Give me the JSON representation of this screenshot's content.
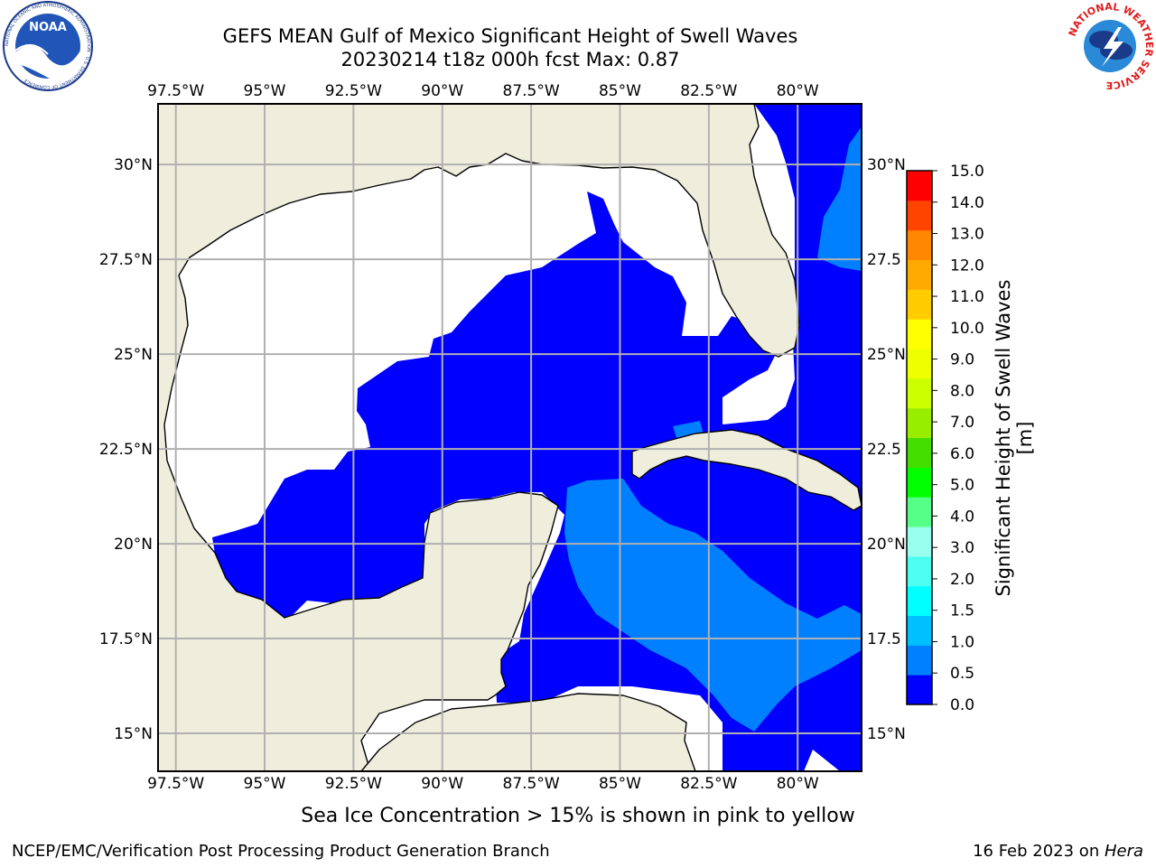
{
  "title": {
    "line1": "GEFS MEAN Gulf of Mexico Significant Height of Swell Waves",
    "line2": "20230214 t18z 000h fcst   Max: 0.87"
  },
  "logos": {
    "left": {
      "icon": "noaa-logo-icon",
      "text": "NOAA",
      "ring_text": "NATIONAL OCEANIC AND ATMOSPHERIC ADMINISTRATION · U.S. DEPARTMENT OF COMMERCE"
    },
    "right": {
      "icon": "nws-logo-icon",
      "ring_text": "NATIONAL WEATHER SERVICE"
    }
  },
  "map": {
    "lon_ticks": [
      "97.5°W",
      "95°W",
      "92.5°W",
      "90°W",
      "87.5°W",
      "85°W",
      "82.5°W",
      "80°W"
    ],
    "lat_ticks": [
      "30°N",
      "27.5°N",
      "25°N",
      "22.5°N",
      "20°N",
      "17.5°N",
      "15°N"
    ],
    "lat_ticks_right": [
      "30°N",
      "27.5",
      "25°N",
      "22.5",
      "20°N",
      "17.5",
      "15°N"
    ],
    "lon_range": [
      -98,
      -78.2
    ],
    "lat_range": [
      14,
      31.6
    ],
    "colors": {
      "land": "#efeedd",
      "grid": "#b0b0b0",
      "ocean_missing": "#ffffff"
    }
  },
  "colorbar": {
    "label": "Significant Height of Swell Waves [m]",
    "ticks": [
      "0.0",
      "0.5",
      "1.0",
      "1.5",
      "2.0",
      "3.0",
      "4.0",
      "5.0",
      "6.0",
      "7.0",
      "8.0",
      "9.0",
      "10.0",
      "11.0",
      "12.0",
      "13.0",
      "14.0",
      "15.0"
    ],
    "colors": [
      "#0000ff",
      "#0080ff",
      "#00c0ff",
      "#00ffff",
      "#4dfff0",
      "#99ffee",
      "#55ff88",
      "#00ff00",
      "#44dd00",
      "#99ee00",
      "#ccff00",
      "#eeff00",
      "#ffff00",
      "#ffcc00",
      "#ffaa00",
      "#ff8800",
      "#ff4400",
      "#ff0000"
    ]
  },
  "note": "Sea Ice Concentration > 15% is shown in pink to yellow",
  "footer": {
    "left": "NCEP/EMC/Verification Post Processing Product Generation Branch",
    "date": "16 Feb 2023 on ",
    "machine": "Hera"
  }
}
